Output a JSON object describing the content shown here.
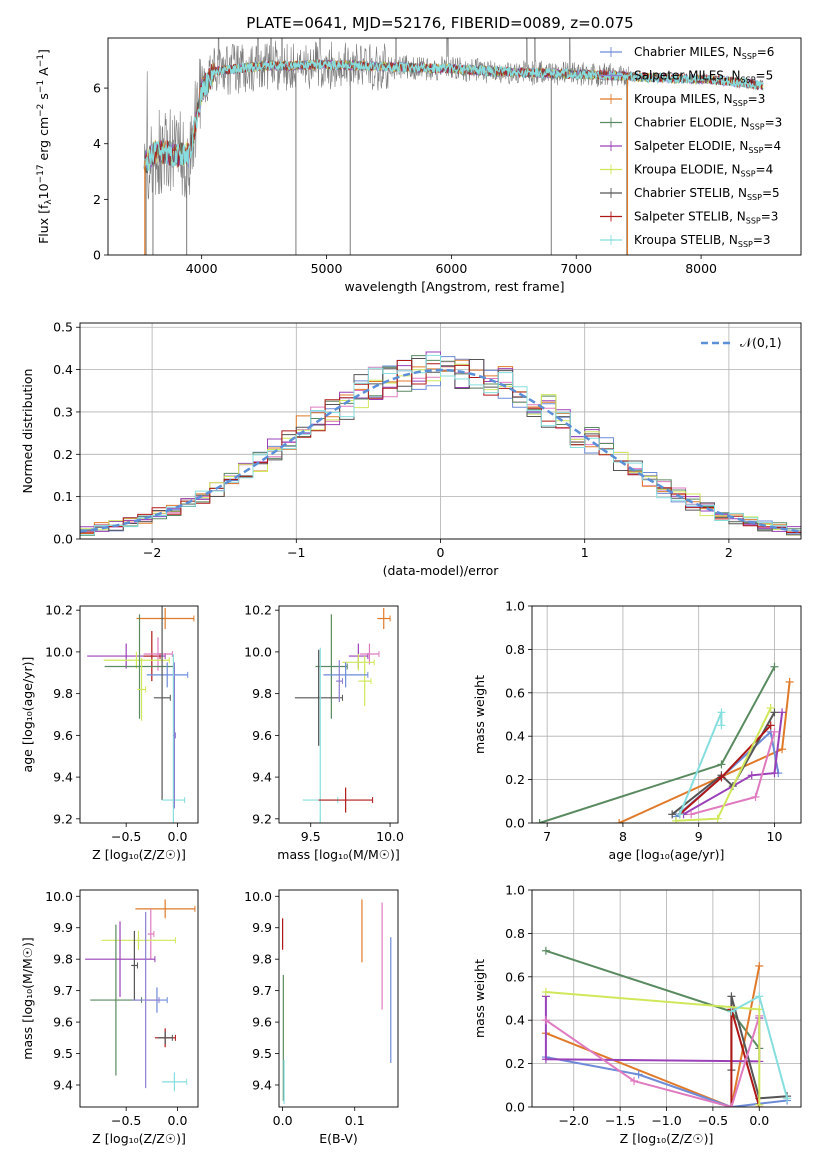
{
  "figure": {
    "title": "PLATE=0641, MJD=52176, FIBERID=0089, z=0.075"
  },
  "colors": {
    "chabrier_miles": "#6e8bd8",
    "salpeter_miles": "#8a7fd0",
    "kroupa_miles": "#e07a2a",
    "chabrier_elodie": "#5a8a60",
    "salpeter_elodie": "#9a40b8",
    "kroupa_elodie": "#cfe85a",
    "chabrier_stelib": "#555555",
    "salpeter_stelib": "#b01818",
    "kroupa_stelib": "#86dede",
    "pink": "#e07ac0",
    "normal_curve": "#5b8fd8",
    "grid": "#b0b0b0"
  },
  "chart_data": [
    {
      "id": "spectrum",
      "type": "line",
      "xlabel": "wavelength [Angstrom, rest frame]",
      "ylabel_main": "Flux [f",
      "ylabel_sub": "λ",
      "ylabel_rest": "10",
      "ylabel_exp1": "−17",
      "ylabel_mid": " erg cm",
      "ylabel_exp2": "−2",
      "ylabel_s": " s",
      "ylabel_exp3": "−1",
      "ylabel_end": " A",
      "ylabel_exp4": "−1",
      "ylabel_close": "]",
      "xlim": [
        3250,
        8800
      ],
      "ylim": [
        0,
        7.8
      ],
      "xticks": [
        4000,
        5000,
        6000,
        7000,
        8000
      ],
      "xtick_labels": [
        "4000",
        "5000",
        "6000",
        "7000",
        "8000"
      ],
      "yticks": [
        0,
        2,
        4,
        6
      ],
      "ytick_labels": [
        "0",
        "2",
        "4",
        "6"
      ],
      "grid": false,
      "legend_position": "top-right",
      "continuum": {
        "x": [
          3550,
          3620,
          3700,
          3800,
          3900,
          4000,
          4100,
          4300,
          4500,
          4700,
          5000,
          5300,
          5600,
          6000,
          6300,
          6600,
          7000,
          7300,
          7500,
          7800,
          8100,
          8500
        ],
        "y": [
          3.3,
          3.7,
          3.7,
          3.6,
          3.6,
          5.9,
          6.6,
          6.7,
          6.8,
          6.8,
          6.85,
          6.8,
          6.75,
          6.7,
          6.6,
          6.55,
          6.5,
          6.45,
          6.4,
          6.35,
          6.3,
          6.1
        ]
      },
      "legend": [
        {
          "label": "Chabrier MILES, N",
          "sub": "SSP",
          "value": "=6",
          "color_key": "chabrier_miles"
        },
        {
          "label": "Salpeter MILES, N",
          "sub": "SSP",
          "value": "=5",
          "color_key": "salpeter_miles"
        },
        {
          "label": "Kroupa MILES, N",
          "sub": "SSP",
          "value": "=3",
          "color_key": "kroupa_miles"
        },
        {
          "label": "Chabrier ELODIE, N",
          "sub": "SSP",
          "value": "=3",
          "color_key": "chabrier_elodie"
        },
        {
          "label": "Salpeter ELODIE, N",
          "sub": "SSP",
          "value": "=4",
          "color_key": "salpeter_elodie"
        },
        {
          "label": "Kroupa ELODIE, N",
          "sub": "SSP",
          "value": "=4",
          "color_key": "kroupa_elodie"
        },
        {
          "label": "Chabrier STELIB, N",
          "sub": "SSP",
          "value": "=5",
          "color_key": "chabrier_stelib"
        },
        {
          "label": "Salpeter STELIB, N",
          "sub": "SSP",
          "value": "=3",
          "color_key": "salpeter_stelib"
        },
        {
          "label": "Kroupa STELIB, N",
          "sub": "SSP",
          "value": "=3",
          "color_key": "kroupa_stelib"
        }
      ]
    },
    {
      "id": "residuals",
      "type": "histogram",
      "xlabel": "(data-model)/error",
      "ylabel": "Normed distribution",
      "xlim": [
        -2.5,
        2.5
      ],
      "ylim": [
        0,
        0.51
      ],
      "xticks": [
        -2,
        -1,
        0,
        1,
        2
      ],
      "xtick_labels": [
        "−2",
        "−1",
        "0",
        "1",
        "2"
      ],
      "yticks": [
        0,
        0.1,
        0.2,
        0.3,
        0.4,
        0.5
      ],
      "ytick_labels": [
        "0.0",
        "0.1",
        "0.2",
        "0.3",
        "0.4",
        "0.5"
      ],
      "grid": true,
      "legend_position": "top-right",
      "legend_label": "𝒩(0,1)",
      "bin_width": 0.1,
      "series_color_keys": [
        "chabrier_miles",
        "pink",
        "kroupa_miles",
        "chabrier_elodie",
        "salpeter_elodie",
        "kroupa_elodie",
        "chabrier_stelib",
        "salpeter_stelib",
        "kroupa_stelib"
      ]
    },
    {
      "id": "age_vs_z",
      "type": "errorbar",
      "xlabel": "Z [log₁₀(Z/Z☉)]",
      "ylabel": "age  [log₁₀(age/yr)]",
      "xlim": [
        -0.95,
        0.2
      ],
      "ylim": [
        9.18,
        10.22
      ],
      "xticks": [
        -0.5,
        0.0
      ],
      "xtick_labels": [
        "−0.5",
        "0.0"
      ],
      "yticks": [
        9.2,
        9.4,
        9.6,
        9.8,
        10.0,
        10.2
      ],
      "ytick_labels": [
        "9.2",
        "9.4",
        "9.6",
        "9.8",
        "10.0",
        "10.2"
      ],
      "grid": false,
      "points": [
        {
          "x": -0.12,
          "xerr": 0.28,
          "y": 10.16,
          "yerr": 0.05,
          "color_key": "kroupa_miles"
        },
        {
          "x": -0.5,
          "xerr": 0.38,
          "y": 9.98,
          "yerr": 0.06,
          "color_key": "salpeter_elodie"
        },
        {
          "x": -0.25,
          "xerr": 0.08,
          "y": 9.98,
          "yerr": 0.12,
          "color_key": "salpeter_stelib"
        },
        {
          "x": -0.19,
          "xerr": 0.14,
          "y": 9.99,
          "yerr": 0.08,
          "color_key": "pink"
        },
        {
          "x": -0.4,
          "xerr": 0.32,
          "y": 9.96,
          "yerr": 0.04,
          "color_key": "kroupa_elodie"
        },
        {
          "x": -0.37,
          "xerr": 0.34,
          "y": 9.93,
          "yerr": 0.25,
          "color_key": "chabrier_elodie"
        },
        {
          "x": -0.1,
          "xerr": 0.2,
          "y": 9.89,
          "yerr": 0.06,
          "color_key": "chabrier_miles"
        },
        {
          "x": -0.15,
          "xerr": 0.08,
          "y": 9.78,
          "yerr": 0.49,
          "color_key": "chabrier_stelib"
        },
        {
          "x": -0.35,
          "xerr": 0.04,
          "y": 9.82,
          "yerr": 0.15,
          "color_key": "kroupa_elodie"
        },
        {
          "x": -0.04,
          "xerr": 0.11,
          "y": 9.29,
          "yerr": 0.7,
          "color_key": "kroupa_stelib"
        },
        {
          "x": -0.03,
          "xerr": 0.01,
          "y": 9.6,
          "yerr": 0.35,
          "color_key": "salpeter_miles"
        }
      ]
    },
    {
      "id": "age_vs_mass",
      "type": "errorbar",
      "xlabel": "mass [log₁₀(M/M☉)]",
      "ylabel": "",
      "xlim": [
        9.3,
        10.05
      ],
      "ylim": [
        9.18,
        10.22
      ],
      "xticks": [
        9.5,
        10.0
      ],
      "xtick_labels": [
        "9.5",
        "10.0"
      ],
      "yticks": [
        9.2,
        9.4,
        9.6,
        9.8,
        10.0,
        10.2
      ],
      "ytick_labels": [
        "9.2",
        "9.4",
        "9.6",
        "9.8",
        "10.0",
        "10.2"
      ],
      "grid": false,
      "points": [
        {
          "x": 9.96,
          "xerr": 0.04,
          "y": 10.16,
          "yerr": 0.05,
          "color_key": "kroupa_miles"
        },
        {
          "x": 9.8,
          "xerr": 0.06,
          "y": 9.98,
          "yerr": 0.06,
          "color_key": "salpeter_elodie"
        },
        {
          "x": 9.87,
          "xerr": 0.06,
          "y": 9.99,
          "yerr": 0.05,
          "color_key": "pink"
        },
        {
          "x": 9.8,
          "xerr": 0.1,
          "y": 9.95,
          "yerr": 0.04,
          "color_key": "kroupa_elodie"
        },
        {
          "x": 9.63,
          "xerr": 0.1,
          "y": 9.93,
          "yerr": 0.25,
          "color_key": "chabrier_elodie"
        },
        {
          "x": 9.84,
          "xerr": 0.04,
          "y": 9.86,
          "yerr": 0.12,
          "color_key": "kroupa_elodie"
        },
        {
          "x": 9.72,
          "xerr": 0.14,
          "y": 9.89,
          "yerr": 0.06,
          "color_key": "chabrier_miles"
        },
        {
          "x": 9.55,
          "xerr": 0.15,
          "y": 9.78,
          "yerr": 0.23,
          "color_key": "chabrier_stelib"
        },
        {
          "x": 9.56,
          "xerr": 0.11,
          "y": 9.29,
          "yerr": 0.73,
          "color_key": "kroupa_stelib"
        },
        {
          "x": 9.72,
          "xerr": 0.17,
          "y": 9.29,
          "yerr": 0.06,
          "color_key": "salpeter_stelib"
        },
        {
          "x": 9.68,
          "xerr": 0.02,
          "y": 9.86,
          "yerr": 0.1,
          "color_key": "salpeter_miles"
        }
      ]
    },
    {
      "id": "weight_vs_age",
      "type": "line",
      "xlabel": "age  [log₁₀(age/yr)]",
      "ylabel": "mass weight",
      "xlim": [
        6.8,
        10.35
      ],
      "ylim": [
        0,
        1.0
      ],
      "xticks": [
        7,
        8,
        9,
        10
      ],
      "xtick_labels": [
        "7",
        "8",
        "9",
        "10"
      ],
      "yticks": [
        0,
        0.2,
        0.4,
        0.6,
        0.8,
        1.0
      ],
      "ytick_labels": [
        "0.0",
        "0.2",
        "0.4",
        "0.6",
        "0.8",
        "1.0"
      ],
      "grid": true,
      "series": [
        {
          "color_key": "chabrier_elodie",
          "x": [
            6.9,
            9.3,
            10.0
          ],
          "y": [
            0.0,
            0.27,
            0.72
          ]
        },
        {
          "color_key": "kroupa_miles",
          "x": [
            7.95,
            10.1,
            10.2
          ],
          "y": [
            0.0,
            0.34,
            0.65
          ]
        },
        {
          "color_key": "chabrier_miles",
          "x": [
            8.7,
            9.3,
            9.95,
            10.05
          ],
          "y": [
            0.03,
            0.21,
            0.42,
            0.23
          ]
        },
        {
          "color_key": "salpeter_elodie",
          "x": [
            8.8,
            9.7,
            10.0,
            10.1
          ],
          "y": [
            0.04,
            0.22,
            0.23,
            0.51
          ]
        },
        {
          "color_key": "chabrier_stelib",
          "x": [
            8.65,
            9.3,
            9.45,
            10.0
          ],
          "y": [
            0.04,
            0.22,
            0.17,
            0.51
          ]
        },
        {
          "color_key": "salpeter_stelib",
          "x": [
            8.75,
            9.3,
            9.95
          ],
          "y": [
            0.04,
            0.21,
            0.45
          ]
        },
        {
          "color_key": "pink",
          "x": [
            8.9,
            9.75,
            10.0
          ],
          "y": [
            0.04,
            0.12,
            0.42
          ]
        },
        {
          "color_key": "kroupa_elodie",
          "x": [
            8.7,
            9.25,
            9.95
          ],
          "y": [
            0.01,
            0.02,
            0.53
          ]
        },
        {
          "color_key": "kroupa_stelib",
          "x": [
            8.75,
            9.3,
            9.3
          ],
          "y": [
            0.04,
            0.51,
            0.45
          ]
        }
      ]
    },
    {
      "id": "mass_vs_z",
      "type": "errorbar",
      "xlabel": "Z [log₁₀(Z/Z☉)]",
      "ylabel": "mass [log₁₀(M/M☉)]",
      "xlim": [
        -0.95,
        0.2
      ],
      "ylim": [
        9.33,
        10.02
      ],
      "xticks": [
        -0.5,
        0.0
      ],
      "xtick_labels": [
        "−0.5",
        "0.0"
      ],
      "yticks": [
        9.4,
        9.5,
        9.6,
        9.7,
        9.8,
        9.9,
        10.0
      ],
      "ytick_labels": [
        "9.4",
        "9.5",
        "9.6",
        "9.7",
        "9.8",
        "9.9",
        "10.0"
      ],
      "grid": false,
      "points": [
        {
          "x": -0.12,
          "xerr": 0.29,
          "y": 9.96,
          "yerr": 0.03,
          "color_key": "kroupa_miles"
        },
        {
          "x": -0.26,
          "xerr": 0.03,
          "y": 9.88,
          "yerr": 0.08,
          "color_key": "pink"
        },
        {
          "x": -0.38,
          "xerr": 0.36,
          "y": 9.86,
          "yerr": 0.03,
          "color_key": "kroupa_elodie"
        },
        {
          "x": -0.56,
          "xerr": 0.34,
          "y": 9.8,
          "yerr": 0.12,
          "color_key": "salpeter_elodie"
        },
        {
          "x": -0.42,
          "xerr": 0.03,
          "y": 9.78,
          "yerr": 0.11,
          "color_key": "chabrier_stelib"
        },
        {
          "x": -0.6,
          "xerr": 0.25,
          "y": 9.67,
          "yerr": 0.24,
          "color_key": "chabrier_elodie"
        },
        {
          "x": -0.2,
          "xerr": 0.1,
          "y": 9.67,
          "yerr": 0.04,
          "color_key": "chabrier_miles"
        },
        {
          "x": -0.31,
          "xerr": 0.13,
          "y": 9.67,
          "yerr": 0.28,
          "color_key": "salpeter_miles"
        },
        {
          "x": -0.12,
          "xerr": 0.1,
          "y": 9.55,
          "yerr": 0.03,
          "color_key": "salpeter_stelib"
        },
        {
          "x": -0.12,
          "xerr": 0.07,
          "y": 9.55,
          "yerr": 0.02,
          "color_key": "chabrier_stelib"
        },
        {
          "x": -0.03,
          "xerr": 0.12,
          "y": 9.41,
          "yerr": 0.03,
          "color_key": "kroupa_stelib"
        }
      ]
    },
    {
      "id": "mass_vs_ebv",
      "type": "errorbar",
      "xlabel": "E(B-V)",
      "ylabel": "",
      "xlim": [
        -0.005,
        0.16
      ],
      "ylim": [
        9.33,
        10.02
      ],
      "xticks": [
        0.0,
        0.1
      ],
      "xtick_labels": [
        "0.0",
        "0.1"
      ],
      "yticks": [
        9.4,
        9.5,
        9.6,
        9.7,
        9.8,
        9.9,
        10.0
      ],
      "ytick_labels": [
        "9.4",
        "9.5",
        "9.6",
        "9.7",
        "9.8",
        "9.9",
        "10.0"
      ],
      "grid": false,
      "points": [
        {
          "x": 0.0,
          "xerr": 0.0,
          "y": 9.88,
          "yerr": 0.05,
          "color_key": "salpeter_stelib"
        },
        {
          "x": 0.001,
          "xerr": 0.0,
          "y": 9.55,
          "yerr": 0.2,
          "color_key": "chabrier_elodie"
        },
        {
          "x": 0.002,
          "xerr": 0.0,
          "y": 9.41,
          "yerr": 0.07,
          "color_key": "kroupa_stelib"
        },
        {
          "x": 0.11,
          "xerr": 0.0,
          "y": 9.89,
          "yerr": 0.1,
          "color_key": "kroupa_miles"
        },
        {
          "x": 0.138,
          "xerr": 0.0,
          "y": 9.81,
          "yerr": 0.17,
          "color_key": "pink"
        },
        {
          "x": 0.15,
          "xerr": 0.0,
          "y": 9.67,
          "yerr": 0.2,
          "color_key": "chabrier_miles"
        }
      ]
    },
    {
      "id": "weight_vs_z",
      "type": "line",
      "xlabel": "Z [log₁₀(Z/Z☉)]",
      "ylabel": "mass weight",
      "xlim": [
        -2.45,
        0.45
      ],
      "ylim": [
        0,
        1.0
      ],
      "xticks": [
        -2.0,
        -1.5,
        -1.0,
        -0.5,
        0.0
      ],
      "xtick_labels": [
        "−2.0",
        "−1.5",
        "−1.0",
        "−0.5",
        "0.0"
      ],
      "yticks": [
        0,
        0.2,
        0.4,
        0.6,
        0.8,
        1.0
      ],
      "ytick_labels": [
        "0.0",
        "0.2",
        "0.4",
        "0.6",
        "0.8",
        "1.0"
      ],
      "grid": true,
      "series": [
        {
          "color_key": "chabrier_elodie",
          "x": [
            -2.3,
            -0.3,
            0.0
          ],
          "y": [
            0.72,
            0.44,
            0.27
          ]
        },
        {
          "color_key": "kroupa_miles",
          "x": [
            -2.3,
            -0.3,
            0.0
          ],
          "y": [
            0.34,
            0.0,
            0.65
          ]
        },
        {
          "color_key": "chabrier_miles",
          "x": [
            -2.3,
            -1.3,
            -0.3,
            0.3
          ],
          "y": [
            0.23,
            0.15,
            0.0,
            0.03
          ]
        },
        {
          "color_key": "salpeter_elodie",
          "x": [
            -2.3,
            -2.3,
            0.0,
            0.0
          ],
          "y": [
            0.51,
            0.22,
            0.21,
            0.41
          ]
        },
        {
          "color_key": "chabrier_stelib",
          "x": [
            -0.3,
            -0.3,
            0.0,
            0.3
          ],
          "y": [
            0.17,
            0.51,
            0.04,
            0.05
          ]
        },
        {
          "color_key": "salpeter_stelib",
          "x": [
            -0.3,
            -0.3,
            0.0
          ],
          "y": [
            0.0,
            0.45,
            0.0
          ]
        },
        {
          "color_key": "pink",
          "x": [
            -2.3,
            -1.35,
            -0.3,
            0.0
          ],
          "y": [
            0.4,
            0.12,
            0.0,
            0.42
          ]
        },
        {
          "color_key": "kroupa_elodie",
          "x": [
            -2.3,
            0.0,
            0.0
          ],
          "y": [
            0.53,
            0.45,
            0.01
          ]
        },
        {
          "color_key": "kroupa_stelib",
          "x": [
            -0.3,
            0.0,
            0.3
          ],
          "y": [
            0.44,
            0.51,
            0.04
          ]
        }
      ]
    }
  ]
}
